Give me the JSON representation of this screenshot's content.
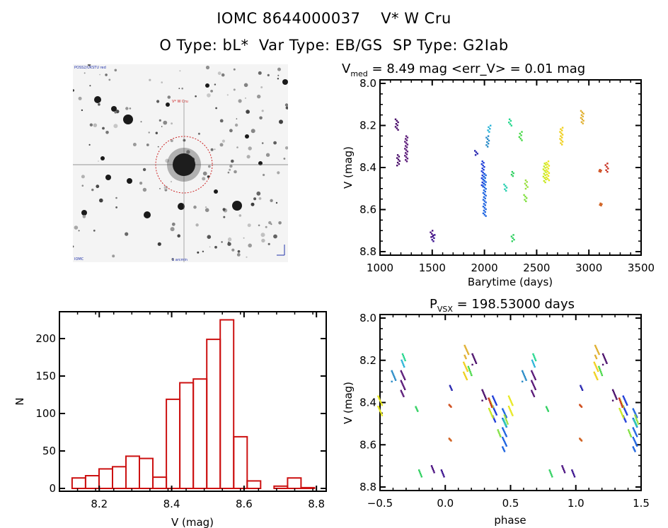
{
  "header": {
    "title_line1": "IOMC 8644000037    V* W Cru",
    "title_line2": "O Type: bL*  Var Type: EB/GS  SP Type: G2Iab"
  },
  "sky_image": {
    "label": "DSS sky image centered on target with red circle",
    "corner_labels": [
      "POSS2/UKSTU red",
      "IOMC",
      "V* W Cru",
      "1 arcmin"
    ],
    "target_marker_color": "#cc2222"
  },
  "chart_data": [
    {
      "type": "scatter",
      "name": "light-curve",
      "title": "V_med = 8.49 mag <err_V> = 0.01 mag",
      "title_main": "V",
      "title_sub": "med",
      "title_rest": " = 8.49 mag <err_V> = 0.01 mag",
      "xlabel": "Barytime (days)",
      "ylabel": "V (mag)",
      "xlim": [
        1000,
        3500
      ],
      "ylim": [
        8.8,
        8.0
      ],
      "y_inverted": true,
      "xticks": [
        1000,
        1500,
        2000,
        2500,
        3000,
        3500
      ],
      "xtick_labels": [
        "1000",
        "1500",
        "2000",
        "2500",
        "3000",
        "3500"
      ],
      "yticks": [
        8.0,
        8.2,
        8.4,
        8.6,
        8.8
      ],
      "ytick_labels": [
        "8.0",
        "8.2",
        "8.4",
        "8.6",
        "8.8"
      ],
      "clusters": [
        {
          "t": 1160,
          "mag_min": 8.17,
          "mag_max": 8.22,
          "color": "#4b0f6b"
        },
        {
          "t": 1175,
          "mag_min": 8.34,
          "mag_max": 8.39,
          "color": "#4b0f6b"
        },
        {
          "t": 1250,
          "mag_min": 8.25,
          "mag_max": 8.37,
          "color": "#5a1a78"
        },
        {
          "t": 1495,
          "mag_min": 8.7,
          "mag_max": 8.73,
          "color": "#4a1080"
        },
        {
          "t": 1510,
          "mag_min": 8.72,
          "mag_max": 8.75,
          "color": "#3c1490"
        },
        {
          "t": 1920,
          "mag_min": 8.32,
          "mag_max": 8.34,
          "color": "#2a28b0"
        },
        {
          "t": 1985,
          "mag_min": 8.37,
          "mag_max": 8.49,
          "color": "#1e3cd8"
        },
        {
          "t": 2000,
          "mag_min": 8.43,
          "mag_max": 8.63,
          "color": "#1e64e0"
        },
        {
          "t": 2030,
          "mag_min": 8.25,
          "mag_max": 8.3,
          "color": "#2a8cc8"
        },
        {
          "t": 2045,
          "mag_min": 8.2,
          "mag_max": 8.23,
          "color": "#2ab4d8"
        },
        {
          "t": 2200,
          "mag_min": 8.48,
          "mag_max": 8.51,
          "color": "#2ad0b0"
        },
        {
          "t": 2245,
          "mag_min": 8.17,
          "mag_max": 8.2,
          "color": "#28d890"
        },
        {
          "t": 2265,
          "mag_min": 8.42,
          "mag_max": 8.44,
          "color": "#30d060"
        },
        {
          "t": 2270,
          "mag_min": 8.72,
          "mag_max": 8.75,
          "color": "#30d060"
        },
        {
          "t": 2345,
          "mag_min": 8.23,
          "mag_max": 8.27,
          "color": "#48d848"
        },
        {
          "t": 2390,
          "mag_min": 8.53,
          "mag_max": 8.56,
          "color": "#80e040"
        },
        {
          "t": 2400,
          "mag_min": 8.46,
          "mag_max": 8.5,
          "color": "#9ae040"
        },
        {
          "t": 2575,
          "mag_min": 8.38,
          "mag_max": 8.47,
          "color": "#c8e820"
        },
        {
          "t": 2605,
          "mag_min": 8.37,
          "mag_max": 8.46,
          "color": "#e8e820"
        },
        {
          "t": 2735,
          "mag_min": 8.21,
          "mag_max": 8.29,
          "color": "#f0d020"
        },
        {
          "t": 2935,
          "mag_min": 8.13,
          "mag_max": 8.19,
          "color": "#e0b030"
        },
        {
          "t": 3110,
          "mag_min": 8.41,
          "mag_max": 8.42,
          "color": "#d05020"
        },
        {
          "t": 3110,
          "mag_min": 8.57,
          "mag_max": 8.58,
          "color": "#d06020"
        },
        {
          "t": 3170,
          "mag_min": 8.38,
          "mag_max": 8.42,
          "color": "#c83020"
        }
      ]
    },
    {
      "type": "bar",
      "name": "histogram",
      "title": "",
      "xlabel": "V (mag)",
      "ylabel": "N",
      "xlim": [
        8.09,
        8.827
      ],
      "ylim": [
        0,
        235
      ],
      "xticks": [
        8.2,
        8.4,
        8.6,
        8.8
      ],
      "xtick_labels": [
        "8.2",
        "8.4",
        "8.6",
        "8.8"
      ],
      "yticks": [
        0,
        50,
        100,
        150,
        200
      ],
      "ytick_labels": [
        "0",
        "50",
        "100",
        "150",
        "200"
      ],
      "bin_start": 8.125,
      "bin_width": 0.0372,
      "values": [
        14,
        17,
        26,
        29,
        43,
        40,
        15,
        119,
        141,
        146,
        199,
        225,
        69,
        10,
        0,
        3,
        14,
        1
      ],
      "bar_color": "#cc1111"
    },
    {
      "type": "scatter",
      "name": "phased-curve",
      "title": "P_vsx = 198.53000 days",
      "title_main": "P",
      "title_sub": "VSX",
      "title_rest": " = 198.53000 days",
      "period_days": 198.53,
      "epoch_days": 1116,
      "xlabel": "phase",
      "ylabel": "V (mag)",
      "xlim": [
        -0.5,
        1.5
      ],
      "ylim": [
        8.8,
        8.0
      ],
      "y_inverted": true,
      "xticks": [
        -0.5,
        0.0,
        0.5,
        1.0,
        1.5
      ],
      "xtick_labels": [
        "−0.5",
        "0.0",
        "0.5",
        "1.0",
        "1.5"
      ],
      "yticks": [
        8.0,
        8.2,
        8.4,
        8.6,
        8.8
      ],
      "ytick_labels": [
        "8.0",
        "8.2",
        "8.4",
        "8.6",
        "8.8"
      ]
    }
  ]
}
